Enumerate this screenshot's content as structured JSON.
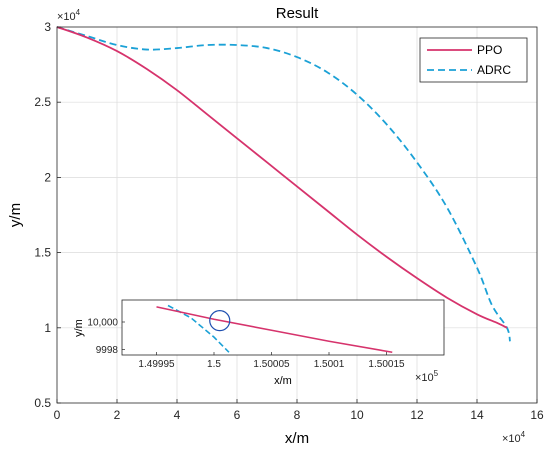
{
  "chart_data": {
    "type": "line",
    "title": "Result",
    "xlabel": "x/m",
    "ylabel": "y/m",
    "x_multiplier": {
      "base": "×10",
      "exp": "4"
    },
    "y_multiplier": {
      "base": "×10",
      "exp": "4"
    },
    "xlim": [
      0,
      16
    ],
    "ylim": [
      0.5,
      3
    ],
    "xticks": [
      0,
      2,
      4,
      6,
      8,
      10,
      12,
      14,
      16
    ],
    "xtick_labels": [
      "0",
      "2",
      "4",
      "6",
      "8",
      "10",
      "12",
      "14",
      "16"
    ],
    "yticks": [
      0.5,
      1,
      1.5,
      2,
      2.5,
      3
    ],
    "ytick_labels": [
      "0.5",
      "1",
      "1.5",
      "2",
      "2.5",
      "3"
    ],
    "grid": true,
    "legend_position": "top-right",
    "series": [
      {
        "name": "PPO",
        "color": "#d6336c",
        "style": "solid",
        "x": [
          0,
          1,
          2,
          3,
          4,
          5,
          6,
          7,
          8,
          9,
          10,
          11,
          12,
          13,
          14,
          14.7,
          15
        ],
        "y": [
          3.0,
          2.93,
          2.84,
          2.72,
          2.58,
          2.42,
          2.26,
          2.1,
          1.94,
          1.78,
          1.62,
          1.47,
          1.33,
          1.2,
          1.09,
          1.03,
          1.0
        ]
      },
      {
        "name": "ADRC",
        "color": "#1ba1d6",
        "style": "dashed",
        "x": [
          0,
          1,
          2,
          3,
          4,
          5,
          6,
          7,
          8,
          9,
          10,
          11,
          12,
          13,
          14,
          14.5,
          15,
          15.1
        ],
        "y": [
          3.0,
          2.94,
          2.88,
          2.85,
          2.86,
          2.88,
          2.88,
          2.86,
          2.8,
          2.7,
          2.55,
          2.35,
          2.1,
          1.8,
          1.4,
          1.15,
          1.0,
          0.91
        ]
      }
    ],
    "inset": {
      "xlim": [
        1.49992,
        1.5002
      ],
      "ylim": [
        9997.6,
        10001.6
      ],
      "xticks": [
        1.49995,
        1.5,
        1.50005,
        1.5001,
        1.50015
      ],
      "xtick_labels": [
        "1.49995",
        "1.5",
        "1.50005",
        "1.5001",
        "1.50015"
      ],
      "yticks": [
        9998,
        10000
      ],
      "ytick_labels": [
        "9998",
        "10,000"
      ],
      "xlabel": "x/m",
      "ylabel": "y/m",
      "x_multiplier": {
        "base": "×10",
        "exp": "5"
      },
      "grid": false,
      "series": [
        {
          "name": "PPO",
          "color": "#d6336c",
          "style": "solid",
          "x": [
            1.49995,
            1.5,
            1.50005,
            1.5001,
            1.500155
          ],
          "y": [
            10001.1,
            10000.2,
            9999.4,
            9998.6,
            9997.8
          ]
        },
        {
          "name": "ADRC",
          "color": "#1ba1d6",
          "style": "dashed",
          "x": [
            1.49996,
            1.49998,
            1.5,
            1.500013
          ],
          "y": [
            10001.2,
            10000.3,
            9998.9,
            9997.8
          ]
        }
      ],
      "marker_circle": {
        "x": 1.500005,
        "y": 10000.1,
        "color": "#1f4fb0"
      }
    }
  }
}
